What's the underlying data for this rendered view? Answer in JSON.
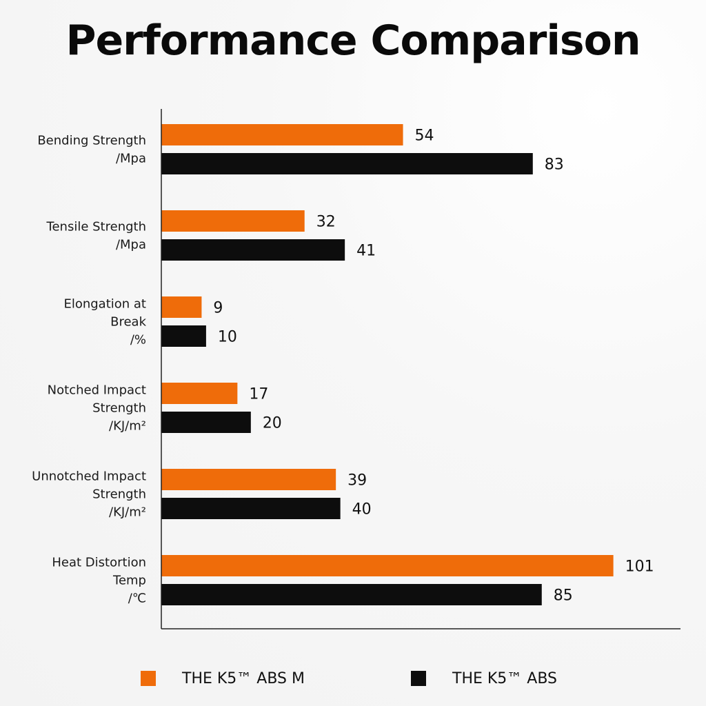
{
  "title": "Performance Comparison",
  "colors": {
    "series_0": "#ef6c0a",
    "series_1": "#0d0d0d",
    "axis": "#222222"
  },
  "legend": {
    "items": [
      {
        "label": "THE K5™ ABS M",
        "color": "#ef6c0a"
      },
      {
        "label": "THE K5™ ABS",
        "color": "#0d0d0d"
      }
    ]
  },
  "chart_data": {
    "type": "bar",
    "orientation": "horizontal",
    "title": "Performance Comparison",
    "categories": [
      [
        "Bending Strength",
        "/Mpa"
      ],
      [
        "Tensile Strength",
        "/Mpa"
      ],
      [
        "Elongation at",
        "Break",
        "/%"
      ],
      [
        "Notched Impact",
        "Strength",
        "/KJ/m²"
      ],
      [
        "Unnotched Impact",
        "Strength",
        "/KJ/m²"
      ],
      [
        "Heat Distortion",
        "Temp",
        "/℃"
      ]
    ],
    "series": [
      {
        "name": "THE K5™ ABS M",
        "values": [
          54,
          32,
          9,
          17,
          39,
          101
        ]
      },
      {
        "name": "THE K5™ ABS",
        "values": [
          83,
          41,
          10,
          20,
          40,
          85
        ]
      }
    ],
    "xlim": [
      0,
      116
    ],
    "grid": false,
    "legend_position": "bottom"
  }
}
